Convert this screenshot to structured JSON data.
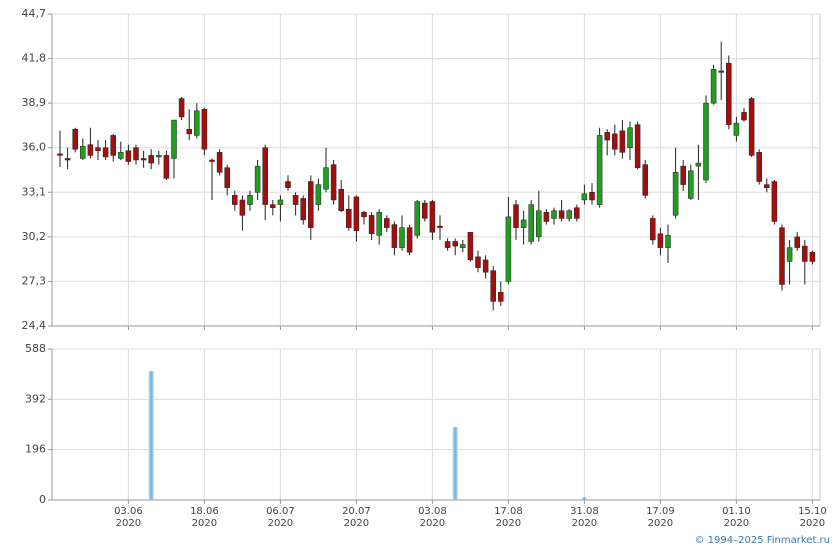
{
  "charts": [
    {
      "type": "candlestick",
      "up_color": "#1f9e1f",
      "down_color": "#a30f0f",
      "grid": true,
      "ylim": [
        24.4,
        44.7
      ],
      "yticks": [
        {
          "value": 24.4,
          "label": "24,4"
        },
        {
          "value": 27.3,
          "label": "27,3"
        },
        {
          "value": 30.2,
          "label": "30,2"
        },
        {
          "value": 33.1,
          "label": "33,1"
        },
        {
          "value": 36.0,
          "label": "36,0"
        },
        {
          "value": 38.9,
          "label": "38,9"
        },
        {
          "value": 41.8,
          "label": "41,8"
        },
        {
          "value": 44.7,
          "label": "44,7"
        }
      ],
      "open": [
        35.6,
        35.3,
        37.2,
        35.3,
        36.2,
        36.0,
        36.0,
        36.8,
        35.3,
        35.8,
        36.0,
        35.3,
        35.5,
        35.4,
        35.5,
        35.3,
        39.2,
        37.2,
        36.8,
        38.5,
        35.2,
        35.7,
        34.7,
        32.9,
        32.6,
        32.3,
        33.1,
        36.0,
        32.3,
        32.3,
        33.8,
        32.9,
        32.7,
        33.8,
        32.3,
        33.3,
        34.9,
        33.3,
        32.0,
        32.8,
        31.8,
        31.6,
        30.3,
        31.4,
        31.0,
        29.5,
        30.8,
        30.3,
        32.4,
        32.5,
        30.9,
        29.9,
        29.9,
        29.5,
        30.5,
        28.9,
        28.7,
        28.0,
        26.6,
        27.3,
        32.3,
        30.8,
        29.9,
        30.2,
        31.8,
        31.4,
        31.9,
        31.4,
        32.1,
        32.6,
        33.1,
        32.3,
        37.0,
        36.9,
        37.1,
        36.0,
        37.5,
        34.9,
        31.4,
        30.4,
        29.5,
        31.6,
        34.8,
        32.7,
        34.8,
        33.9,
        38.9,
        41.0,
        41.5,
        36.8,
        38.3,
        39.2,
        35.7,
        33.6,
        33.8,
        30.8,
        28.6,
        30.2,
        29.6,
        29.2
      ],
      "high": [
        37.1,
        36.0,
        37.3,
        36.6,
        37.3,
        36.5,
        36.5,
        36.9,
        36.4,
        36.2,
        36.2,
        35.8,
        35.9,
        35.8,
        35.8,
        37.8,
        39.3,
        38.5,
        38.9,
        38.6,
        35.3,
        35.9,
        34.9,
        33.2,
        32.9,
        33.2,
        35.2,
        36.2,
        32.6,
        32.9,
        34.2,
        33.1,
        32.9,
        34.2,
        34.0,
        36.0,
        35.2,
        33.9,
        32.9,
        32.9,
        31.9,
        31.8,
        32.0,
        31.6,
        31.2,
        31.6,
        31.0,
        32.6,
        32.6,
        32.6,
        31.6,
        30.1,
        30.1,
        30.0,
        30.5,
        29.3,
        29.0,
        28.3,
        27.3,
        32.8,
        32.6,
        31.9,
        32.6,
        33.2,
        32.0,
        32.1,
        32.6,
        32.0,
        32.3,
        33.6,
        33.7,
        37.3,
        37.2,
        37.5,
        37.8,
        37.7,
        37.7,
        35.2,
        31.6,
        30.8,
        31.0,
        36.0,
        35.2,
        34.9,
        36.2,
        39.4,
        41.4,
        42.9,
        42.0,
        38.0,
        38.6,
        39.3,
        35.9,
        34.0,
        33.9,
        31.0,
        30.0,
        30.5,
        30.0,
        29.3
      ],
      "low": [
        34.75,
        34.6,
        35.7,
        35.2,
        35.3,
        35.2,
        35.2,
        35.1,
        35.2,
        34.9,
        34.9,
        34.7,
        34.6,
        34.9,
        33.9,
        34.0,
        37.8,
        36.5,
        36.6,
        35.5,
        32.6,
        34.2,
        32.9,
        31.9,
        30.6,
        31.9,
        32.6,
        31.3,
        31.6,
        31.2,
        33.2,
        31.6,
        31.0,
        30.0,
        31.9,
        33.1,
        32.3,
        31.8,
        30.6,
        29.9,
        31.0,
        30.0,
        29.7,
        30.5,
        29.0,
        29.3,
        29.0,
        30.1,
        31.2,
        30.0,
        30.0,
        29.3,
        29.0,
        29.2,
        28.6,
        27.9,
        27.5,
        25.4,
        25.7,
        27.1,
        30.0,
        29.7,
        29.7,
        29.9,
        31.0,
        31.0,
        31.2,
        31.2,
        31.2,
        32.3,
        32.3,
        32.1,
        35.5,
        35.5,
        35.3,
        35.2,
        34.6,
        32.7,
        29.7,
        29.0,
        28.5,
        31.4,
        33.2,
        32.6,
        32.6,
        33.7,
        38.8,
        39.1,
        37.2,
        36.4,
        37.7,
        35.4,
        33.6,
        33.1,
        31.0,
        26.7,
        27.1,
        29.3,
        27.1,
        28.4
      ],
      "close": [
        35.5,
        35.2,
        35.9,
        36.1,
        35.5,
        35.8,
        35.4,
        35.5,
        35.7,
        35.1,
        35.2,
        35.2,
        35.0,
        35.5,
        34.0,
        37.8,
        38.0,
        36.9,
        38.4,
        35.9,
        35.1,
        34.4,
        33.4,
        32.3,
        31.6,
        32.9,
        34.8,
        32.3,
        32.1,
        32.6,
        33.4,
        32.3,
        31.3,
        30.8,
        33.6,
        34.7,
        32.6,
        31.9,
        30.8,
        30.6,
        31.5,
        30.4,
        31.8,
        30.8,
        29.5,
        30.8,
        29.2,
        32.5,
        31.4,
        30.5,
        30.8,
        29.5,
        29.6,
        29.7,
        28.7,
        28.2,
        27.9,
        26.0,
        26.0,
        31.5,
        30.8,
        31.3,
        32.3,
        31.9,
        31.2,
        31.9,
        31.4,
        31.9,
        31.4,
        33.0,
        32.6,
        36.8,
        36.5,
        35.9,
        35.7,
        37.3,
        34.7,
        32.9,
        30.0,
        29.5,
        30.3,
        34.4,
        33.6,
        34.5,
        35.0,
        38.9,
        41.1,
        40.9,
        37.5,
        37.6,
        37.8,
        35.5,
        33.8,
        33.4,
        31.2,
        27.1,
        29.5,
        29.5,
        28.6,
        28.6
      ]
    },
    {
      "type": "bar",
      "color": "#7cbfea",
      "grid": true,
      "ylim": [
        0,
        588
      ],
      "yticks": [
        0,
        196,
        392,
        588
      ],
      "categories": [
        null,
        null,
        null,
        null,
        null,
        null,
        null,
        null,
        null,
        "03.06\n2020",
        null,
        null,
        null,
        null,
        null,
        null,
        null,
        null,
        null,
        "18.06\n2020",
        null,
        null,
        null,
        null,
        null,
        null,
        null,
        null,
        null,
        "06.07\n2020",
        null,
        null,
        null,
        null,
        null,
        null,
        null,
        null,
        null,
        "20.07\n2020",
        null,
        null,
        null,
        null,
        null,
        null,
        null,
        null,
        null,
        "03.08\n2020",
        null,
        null,
        null,
        null,
        null,
        null,
        null,
        null,
        null,
        "17.08\n2020",
        null,
        null,
        null,
        null,
        null,
        null,
        null,
        null,
        null,
        "31.08\n2020",
        null,
        null,
        null,
        null,
        null,
        null,
        null,
        null,
        null,
        "17.09\n2020",
        null,
        null,
        null,
        null,
        null,
        null,
        null,
        null,
        null,
        "01.10\n2020",
        null,
        null,
        null,
        null,
        null,
        null,
        null,
        null,
        null,
        "15.10\n2020"
      ],
      "values": [
        0,
        0,
        0,
        0,
        0,
        0,
        0,
        0,
        0,
        0,
        0,
        0,
        502,
        0,
        0,
        0,
        0,
        0,
        3,
        0,
        0,
        0,
        0,
        0,
        0,
        0,
        0,
        0,
        0,
        3,
        0,
        0,
        0,
        0,
        0,
        0,
        0,
        0,
        0,
        0,
        0,
        0,
        0,
        0,
        0,
        0,
        0,
        0,
        0,
        0,
        0,
        0,
        284,
        0,
        0,
        0,
        0,
        0,
        0,
        0,
        0,
        0,
        0,
        0,
        0,
        0,
        0,
        0,
        0,
        10,
        0,
        0,
        0,
        0,
        0,
        0,
        0,
        0,
        0,
        0,
        0,
        0,
        0,
        0,
        0,
        0,
        0,
        0,
        0,
        0,
        0,
        0,
        0,
        0,
        0,
        0,
        0,
        0,
        0,
        0
      ]
    }
  ],
  "footer": "© 1994–2025 Finmarket.ru"
}
